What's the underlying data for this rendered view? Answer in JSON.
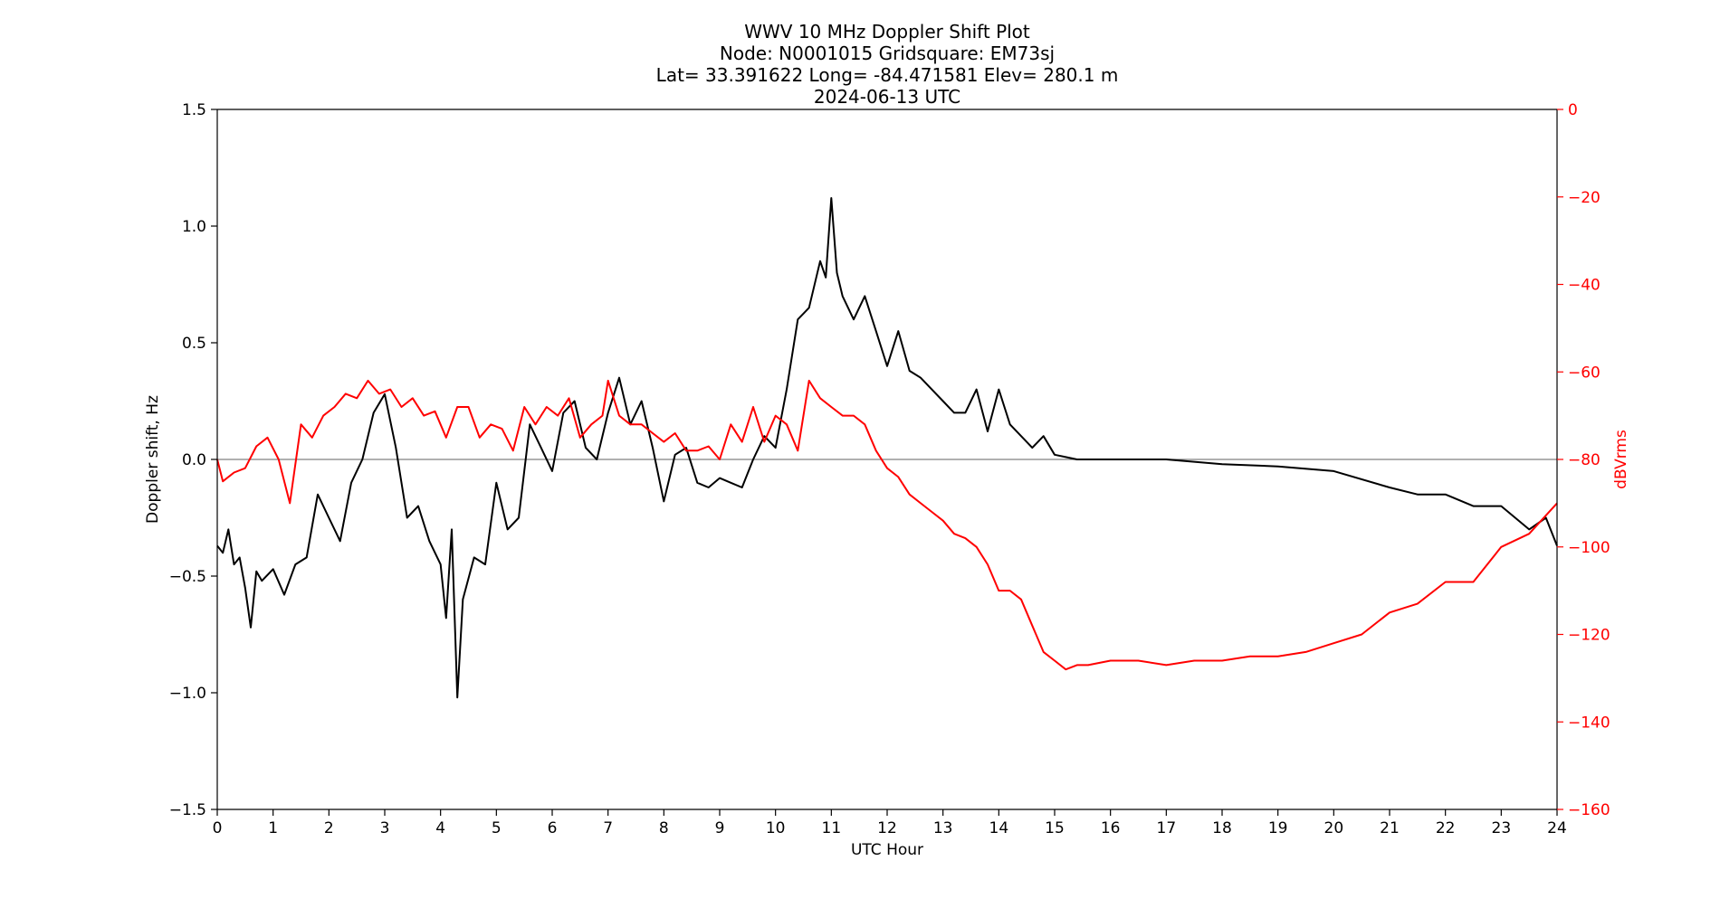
{
  "chart_data": {
    "type": "line",
    "title_lines": [
      "WWV 10 MHz Doppler Shift Plot",
      "Node:  N0001015     Gridsquare:  EM73sj",
      "Lat= 33.391622    Long= -84.471581    Elev= 280.1 m",
      "2024-06-13  UTC"
    ],
    "xlabel": "UTC Hour",
    "ylabel": "Doppler shift, Hz",
    "ylabel_right": "dBVrms",
    "xlim": [
      0,
      24
    ],
    "ylim": [
      -1.5,
      1.5
    ],
    "ylim_right": [
      -160,
      0
    ],
    "x_ticks": [
      "0",
      "1",
      "2",
      "3",
      "4",
      "5",
      "6",
      "7",
      "8",
      "9",
      "10",
      "11",
      "12",
      "13",
      "14",
      "15",
      "16",
      "17",
      "18",
      "19",
      "20",
      "21",
      "22",
      "23",
      "24"
    ],
    "y_ticks": [
      "1.5",
      "1.0",
      "0.5",
      "0.0",
      "−0.5",
      "−1.0",
      "−1.5"
    ],
    "y_right_ticks": [
      "0",
      "−20",
      "−40",
      "−60",
      "−80",
      "−100",
      "−120",
      "−140",
      "−160"
    ],
    "colors": {
      "doppler": "#000000",
      "power": "#ff0000",
      "zero_line": "#808080"
    },
    "series": [
      {
        "axis": "left",
        "x": [
          0,
          0.1,
          0.2,
          0.3,
          0.4,
          0.5,
          0.6,
          0.7,
          0.8,
          1.0,
          1.2,
          1.4,
          1.6,
          1.8,
          2.0,
          2.2,
          2.4,
          2.6,
          2.8,
          3.0,
          3.2,
          3.4,
          3.6,
          3.8,
          4.0,
          4.1,
          4.2,
          4.3,
          4.4,
          4.6,
          4.8,
          5.0,
          5.2,
          5.4,
          5.6,
          5.8,
          6.0,
          6.2,
          6.4,
          6.6,
          6.8,
          7.0,
          7.2,
          7.4,
          7.6,
          7.8,
          8.0,
          8.2,
          8.4,
          8.6,
          8.8,
          9.0,
          9.2,
          9.4,
          9.6,
          9.8,
          10.0,
          10.2,
          10.4,
          10.6,
          10.8,
          10.9,
          11.0,
          11.1,
          11.2,
          11.4,
          11.6,
          11.8,
          12.0,
          12.2,
          12.4,
          12.6,
          12.8,
          13.0,
          13.2,
          13.4,
          13.6,
          13.8,
          14.0,
          14.2,
          14.4,
          14.6,
          14.8,
          15.0,
          15.2,
          15.4,
          16,
          17,
          18,
          19,
          20,
          21,
          21.5,
          22,
          22.5,
          23,
          23.5,
          23.8,
          24
        ],
        "y": [
          -0.37,
          -0.4,
          -0.3,
          -0.45,
          -0.42,
          -0.55,
          -0.72,
          -0.48,
          -0.52,
          -0.47,
          -0.58,
          -0.45,
          -0.42,
          -0.15,
          -0.25,
          -0.35,
          -0.1,
          0.0,
          0.2,
          0.28,
          0.05,
          -0.25,
          -0.2,
          -0.35,
          -0.45,
          -0.68,
          -0.3,
          -1.02,
          -0.6,
          -0.42,
          -0.45,
          -0.1,
          -0.3,
          -0.25,
          0.15,
          0.05,
          -0.05,
          0.2,
          0.25,
          0.05,
          0.0,
          0.2,
          0.35,
          0.15,
          0.25,
          0.05,
          -0.18,
          0.02,
          0.05,
          -0.1,
          -0.12,
          -0.08,
          -0.1,
          -0.12,
          0.0,
          0.1,
          0.05,
          0.3,
          0.6,
          0.65,
          0.85,
          0.78,
          1.12,
          0.8,
          0.7,
          0.6,
          0.7,
          0.55,
          0.4,
          0.55,
          0.38,
          0.35,
          0.3,
          0.25,
          0.2,
          0.2,
          0.3,
          0.12,
          0.3,
          0.15,
          0.1,
          0.05,
          0.1,
          0.02,
          0.01,
          0.0,
          0.0,
          0.0,
          -0.02,
          -0.03,
          -0.05,
          -0.12,
          -0.15,
          -0.15,
          -0.2,
          -0.2,
          -0.3,
          -0.25,
          -0.37
        ]
      },
      {
        "axis": "right",
        "x": [
          0,
          0.1,
          0.3,
          0.5,
          0.7,
          0.9,
          1.1,
          1.3,
          1.5,
          1.7,
          1.9,
          2.1,
          2.3,
          2.5,
          2.7,
          2.9,
          3.1,
          3.3,
          3.5,
          3.7,
          3.9,
          4.1,
          4.3,
          4.5,
          4.7,
          4.9,
          5.1,
          5.3,
          5.5,
          5.7,
          5.9,
          6.1,
          6.3,
          6.5,
          6.7,
          6.9,
          7.0,
          7.2,
          7.4,
          7.6,
          7.8,
          8.0,
          8.2,
          8.4,
          8.6,
          8.8,
          9.0,
          9.2,
          9.4,
          9.6,
          9.8,
          10.0,
          10.2,
          10.4,
          10.6,
          10.8,
          11.0,
          11.2,
          11.4,
          11.6,
          11.8,
          12.0,
          12.2,
          12.4,
          12.6,
          12.8,
          13.0,
          13.2,
          13.4,
          13.6,
          13.8,
          14.0,
          14.2,
          14.4,
          14.6,
          14.8,
          15.0,
          15.2,
          15.4,
          15.6,
          16,
          16.5,
          17,
          17.5,
          18,
          18.5,
          19,
          19.5,
          20,
          20.5,
          21,
          21.5,
          22,
          22.5,
          23,
          23.5,
          24
        ],
        "y": [
          -80,
          -85,
          -83,
          -82,
          -77,
          -75,
          -80,
          -90,
          -72,
          -75,
          -70,
          -68,
          -65,
          -66,
          -62,
          -65,
          -64,
          -68,
          -66,
          -70,
          -69,
          -75,
          -68,
          -68,
          -75,
          -72,
          -73,
          -78,
          -68,
          -72,
          -68,
          -70,
          -66,
          -75,
          -72,
          -70,
          -62,
          -70,
          -72,
          -72,
          -74,
          -76,
          -74,
          -78,
          -78,
          -77,
          -80,
          -72,
          -76,
          -68,
          -76,
          -70,
          -72,
          -78,
          -62,
          -66,
          -68,
          -70,
          -70,
          -72,
          -78,
          -82,
          -84,
          -88,
          -90,
          -92,
          -94,
          -97,
          -98,
          -100,
          -104,
          -110,
          -110,
          -112,
          -118,
          -124,
          -126,
          -128,
          -127,
          -127,
          -126,
          -126,
          -127,
          -126,
          -126,
          -125,
          -125,
          -124,
          -122,
          -120,
          -115,
          -113,
          -108,
          -108,
          -100,
          -97,
          -90
        ]
      }
    ]
  }
}
